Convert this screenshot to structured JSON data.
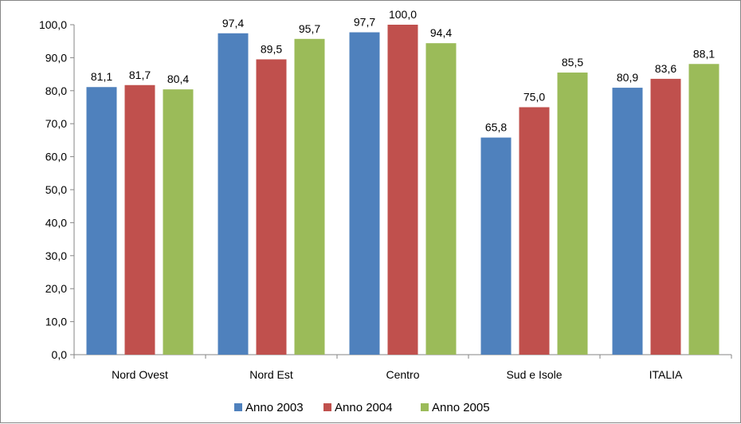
{
  "chart_data": {
    "type": "bar",
    "title": "",
    "xlabel": "",
    "ylabel": "",
    "categories": [
      "Nord Ovest",
      "Nord Est",
      "Centro",
      "Sud e Isole",
      "ITALIA"
    ],
    "series": [
      {
        "name": "Anno 2003",
        "color": "#4F81BD",
        "values": [
          81.1,
          97.4,
          97.7,
          65.8,
          80.9
        ]
      },
      {
        "name": "Anno 2004",
        "color": "#C0504D",
        "values": [
          81.7,
          89.5,
          100.0,
          75.0,
          83.6
        ]
      },
      {
        "name": "Anno 2005",
        "color": "#9BBB59",
        "values": [
          80.4,
          95.7,
          94.4,
          85.5,
          88.1
        ]
      }
    ],
    "ylim": [
      0,
      100
    ],
    "yticks": [
      "0,0",
      "10,0",
      "20,0",
      "30,0",
      "40,0",
      "50,0",
      "60,0",
      "70,0",
      "80,0",
      "90,0",
      "100,0"
    ],
    "data_labels": [
      [
        "81,1",
        "97,4",
        "97,7",
        "65,8",
        "80,9"
      ],
      [
        "81,7",
        "89,5",
        "100,0",
        "75,0",
        "83,6"
      ],
      [
        "80,4",
        "95,7",
        "94,4",
        "85,5",
        "88,1"
      ]
    ],
    "grid": false,
    "legend": "bottom",
    "axis_color": "#868686"
  }
}
